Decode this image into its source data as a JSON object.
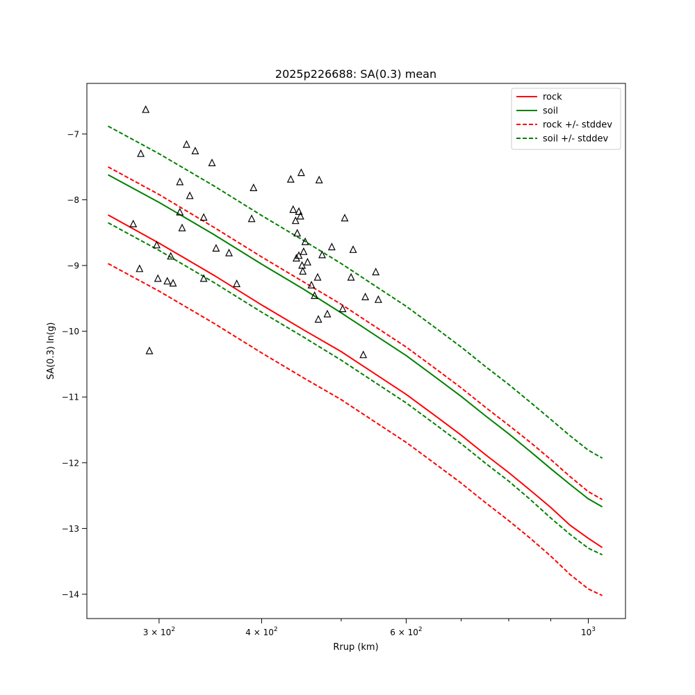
{
  "chart_data": {
    "type": "line",
    "title": "2025p226688: SA(0.3) mean",
    "xlabel": "Rrup (km)",
    "ylabel": "SA(0.3) ln(g)",
    "xscale": "log",
    "xlim": [
      245,
      1110
    ],
    "ylim": [
      -14.37,
      -6.23
    ],
    "grid": false,
    "legend_position": "top-right",
    "x_ticks": [
      {
        "value": 300,
        "base": "3 × 10",
        "exp": "2"
      },
      {
        "value": 400,
        "base": "4 × 10",
        "exp": "2"
      },
      {
        "value": 600,
        "base": "6 × 10",
        "exp": "2"
      },
      {
        "value": 1000,
        "base": "10",
        "exp": "3"
      }
    ],
    "x_minor_ticks": [
      500,
      700,
      800,
      900
    ],
    "y_ticks": [
      {
        "value": -14,
        "label": "−14"
      },
      {
        "value": -13,
        "label": "−13"
      },
      {
        "value": -12,
        "label": "−12"
      },
      {
        "value": -11,
        "label": "−11"
      },
      {
        "value": -10,
        "label": "−10"
      },
      {
        "value": -9,
        "label": "−9"
      },
      {
        "value": -8,
        "label": "−8"
      },
      {
        "value": -7,
        "label": "−7"
      }
    ],
    "series": [
      {
        "name": "rock",
        "color": "#ff0000",
        "dash": "solid",
        "x": [
          260,
          300,
          350,
          400,
          450,
          500,
          550,
          600,
          650,
          700,
          750,
          800,
          850,
          900,
          950,
          1000,
          1040
        ],
        "y": [
          -8.23,
          -8.66,
          -9.15,
          -9.6,
          -9.98,
          -10.31,
          -10.65,
          -10.96,
          -11.28,
          -11.58,
          -11.88,
          -12.15,
          -12.42,
          -12.68,
          -12.95,
          -13.15,
          -13.29
        ]
      },
      {
        "name": "soil",
        "color": "#008000",
        "dash": "solid",
        "x": [
          260,
          300,
          350,
          400,
          450,
          500,
          550,
          600,
          650,
          700,
          750,
          800,
          850,
          900,
          950,
          1000,
          1040
        ],
        "y": [
          -7.62,
          -8.04,
          -8.53,
          -8.98,
          -9.36,
          -9.72,
          -10.06,
          -10.37,
          -10.69,
          -10.99,
          -11.29,
          -11.56,
          -11.83,
          -12.09,
          -12.33,
          -12.55,
          -12.67
        ]
      },
      {
        "name": "rock +/- stddev",
        "color": "#ff0000",
        "dash": "dashed",
        "x": [
          260,
          300,
          350,
          400,
          450,
          500,
          550,
          600,
          650,
          700,
          750,
          800,
          850,
          900,
          950,
          1000,
          1040
        ],
        "y": [
          -7.5,
          -7.92,
          -8.42,
          -8.87,
          -9.25,
          -9.59,
          -9.93,
          -10.24,
          -10.56,
          -10.86,
          -11.16,
          -11.43,
          -11.69,
          -11.95,
          -12.21,
          -12.44,
          -12.56
        ]
      },
      {
        "name": "rock -stddev",
        "color": "#ff0000",
        "dash": "dashed",
        "legend": false,
        "x": [
          260,
          300,
          350,
          400,
          450,
          500,
          550,
          600,
          650,
          700,
          750,
          800,
          850,
          900,
          950,
          1000,
          1040
        ],
        "y": [
          -8.97,
          -9.39,
          -9.88,
          -10.33,
          -10.71,
          -11.04,
          -11.38,
          -11.69,
          -12.01,
          -12.31,
          -12.61,
          -12.88,
          -13.15,
          -13.42,
          -13.7,
          -13.92,
          -14.02
        ]
      },
      {
        "name": "soil +/- stddev",
        "color": "#008000",
        "dash": "dashed",
        "x": [
          260,
          300,
          350,
          400,
          450,
          500,
          550,
          600,
          650,
          700,
          750,
          800,
          850,
          900,
          950,
          1000,
          1040
        ],
        "y": [
          -6.88,
          -7.3,
          -7.79,
          -8.24,
          -8.62,
          -8.97,
          -9.31,
          -9.62,
          -9.94,
          -10.24,
          -10.54,
          -10.81,
          -11.08,
          -11.34,
          -11.59,
          -11.81,
          -11.93
        ]
      },
      {
        "name": "soil -stddev",
        "color": "#008000",
        "dash": "dashed",
        "legend": false,
        "x": [
          260,
          300,
          350,
          400,
          450,
          500,
          550,
          600,
          650,
          700,
          750,
          800,
          850,
          900,
          950,
          1000,
          1040
        ],
        "y": [
          -8.35,
          -8.77,
          -9.26,
          -9.71,
          -10.09,
          -10.44,
          -10.78,
          -11.09,
          -11.41,
          -11.71,
          -12.01,
          -12.28,
          -12.56,
          -12.84,
          -13.09,
          -13.3,
          -13.4
        ]
      }
    ],
    "observations": {
      "marker": "open-triangle",
      "color": "#000000",
      "x": [
        289,
        285,
        279,
        292,
        284,
        298,
        299,
        307,
        310,
        312,
        318,
        318,
        320,
        324,
        327,
        332,
        340,
        340,
        348,
        352,
        365,
        373,
        389,
        391,
        434,
        437,
        440,
        441,
        442,
        444,
        444,
        446,
        447,
        448,
        449,
        450,
        452,
        455,
        460,
        464,
        468,
        469,
        470,
        474,
        481,
        487,
        502,
        505,
        514,
        517,
        532,
        535,
        551,
        555
      ],
      "y": [
        -6.63,
        -7.3,
        -8.37,
        -10.3,
        -9.05,
        -8.69,
        -9.2,
        -9.24,
        -8.86,
        -9.27,
        -8.19,
        -7.73,
        -8.43,
        -7.16,
        -7.94,
        -7.26,
        -8.27,
        -9.2,
        -7.44,
        -8.74,
        -8.81,
        -9.28,
        -8.29,
        -7.82,
        -7.69,
        -8.15,
        -8.32,
        -8.89,
        -8.51,
        -8.85,
        -8.18,
        -8.25,
        -7.59,
        -9.0,
        -9.09,
        -8.79,
        -8.64,
        -8.95,
        -9.3,
        -9.46,
        -9.18,
        -9.82,
        -7.7,
        -8.84,
        -9.74,
        -8.72,
        -9.66,
        -8.28,
        -9.18,
        -8.76,
        -10.36,
        -9.48,
        -9.1,
        -9.52
      ]
    }
  }
}
